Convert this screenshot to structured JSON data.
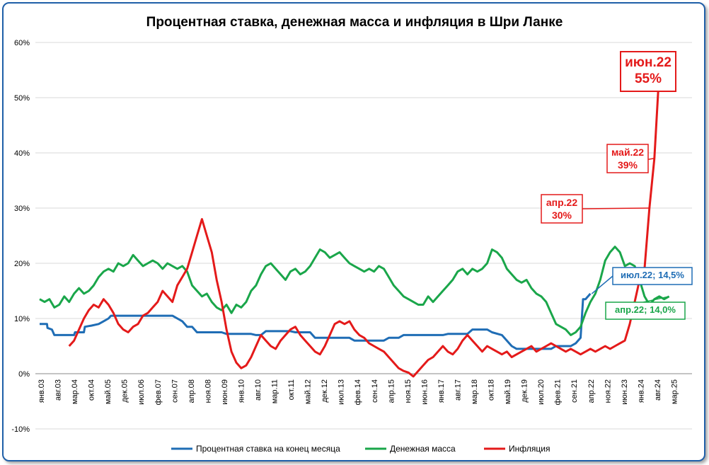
{
  "chart_data": {
    "type": "line",
    "title": "Процентная ставка, денежная масса и инфляция в Шри Ланке",
    "xlabel": "",
    "ylabel": "",
    "ylim": [
      -10,
      60
    ],
    "yticks": [
      "-10%",
      "0%",
      "10%",
      "20%",
      "30%",
      "40%",
      "50%",
      "60%"
    ],
    "grid": "horizontal",
    "legend_position": "bottom",
    "x_tick_labels": [
      "янв.03",
      "авг.03",
      "мар.04",
      "окт.04",
      "май.05",
      "дек.05",
      "июл.06",
      "фев.07",
      "сен.07",
      "апр.08",
      "ноя.08",
      "июн.09",
      "янв.10",
      "авг.10",
      "мар.11",
      "окт.11",
      "май.12",
      "дек.12",
      "июл.13",
      "фев.14",
      "сен.14",
      "апр.15",
      "ноя.15",
      "июн.16",
      "янв.17",
      "авг.17",
      "мар.18",
      "окт.18",
      "май.19",
      "дек.19",
      "июл.20",
      "фев.21",
      "сен.21",
      "апр.22",
      "ноя.22",
      "июн.23",
      "янв.24",
      "авг.24",
      "мар.25"
    ],
    "series": [
      {
        "name": "Процентная ставка на конец месяца",
        "color": "#1f6db5",
        "points": [
          [
            0,
            9
          ],
          [
            1.5,
            9
          ],
          [
            1.6,
            8.3
          ],
          [
            2.5,
            8
          ],
          [
            3,
            7
          ],
          [
            7,
            7
          ],
          [
            7.2,
            7.5
          ],
          [
            9,
            7.5
          ],
          [
            9.2,
            8.5
          ],
          [
            10.5,
            8.7
          ],
          [
            12,
            9
          ],
          [
            13,
            9.5
          ],
          [
            14,
            10
          ],
          [
            14.5,
            10.5
          ],
          [
            27,
            10.5
          ],
          [
            29,
            9.5
          ],
          [
            30,
            8.5
          ],
          [
            31,
            8.5
          ],
          [
            32,
            7.5
          ],
          [
            37,
            7.5
          ],
          [
            38,
            7.2
          ],
          [
            43,
            7.2
          ],
          [
            44,
            7
          ],
          [
            45,
            7
          ],
          [
            46,
            7.7
          ],
          [
            51,
            7.7
          ],
          [
            52,
            7.5
          ],
          [
            55,
            7.5
          ],
          [
            56,
            6.5
          ],
          [
            63,
            6.5
          ],
          [
            64,
            6
          ],
          [
            70,
            6
          ],
          [
            71,
            6.5
          ],
          [
            73,
            6.5
          ],
          [
            74,
            7
          ],
          [
            82,
            7
          ],
          [
            83,
            7.2
          ],
          [
            87,
            7.2
          ],
          [
            88,
            8
          ],
          [
            91,
            8
          ],
          [
            92,
            7.5
          ],
          [
            94,
            7
          ],
          [
            95,
            6
          ],
          [
            96,
            5
          ],
          [
            97,
            4.5
          ],
          [
            104,
            4.5
          ],
          [
            105,
            5
          ],
          [
            108,
            5
          ],
          [
            109,
            5.5
          ],
          [
            110,
            6.5
          ],
          [
            110.5,
            13.5
          ],
          [
            111,
            13.5
          ],
          [
            112,
            14.5
          ]
        ]
      },
      {
        "name": "Денежная масса",
        "color": "#1aa64a",
        "points": [
          [
            0,
            13.5
          ],
          [
            1,
            13
          ],
          [
            2,
            13.5
          ],
          [
            3,
            12
          ],
          [
            4,
            12.5
          ],
          [
            5,
            14
          ],
          [
            6,
            13
          ],
          [
            7,
            14.5
          ],
          [
            8,
            15.5
          ],
          [
            9,
            14.5
          ],
          [
            10,
            15
          ],
          [
            11,
            16
          ],
          [
            12,
            17.5
          ],
          [
            13,
            18.5
          ],
          [
            14,
            19
          ],
          [
            15,
            18.5
          ],
          [
            16,
            20
          ],
          [
            17,
            19.5
          ],
          [
            18,
            20
          ],
          [
            19,
            21.5
          ],
          [
            20,
            20.5
          ],
          [
            21,
            19.5
          ],
          [
            22,
            20
          ],
          [
            23,
            20.5
          ],
          [
            24,
            20
          ],
          [
            25,
            19
          ],
          [
            26,
            20
          ],
          [
            27,
            19.5
          ],
          [
            28,
            19
          ],
          [
            29,
            19.5
          ],
          [
            30,
            18.5
          ],
          [
            31,
            16
          ],
          [
            32,
            15
          ],
          [
            33,
            14
          ],
          [
            34,
            14.5
          ],
          [
            35,
            13
          ],
          [
            36,
            12
          ],
          [
            37,
            11.5
          ],
          [
            38,
            12.5
          ],
          [
            39,
            11
          ],
          [
            40,
            12.5
          ],
          [
            41,
            12
          ],
          [
            42,
            13
          ],
          [
            43,
            15
          ],
          [
            44,
            16
          ],
          [
            45,
            18
          ],
          [
            46,
            19.5
          ],
          [
            47,
            20
          ],
          [
            48,
            19
          ],
          [
            49,
            18
          ],
          [
            50,
            17
          ],
          [
            51,
            18.5
          ],
          [
            52,
            19
          ],
          [
            53,
            18
          ],
          [
            54,
            18.5
          ],
          [
            55,
            19.5
          ],
          [
            56,
            21
          ],
          [
            57,
            22.5
          ],
          [
            58,
            22
          ],
          [
            59,
            21
          ],
          [
            60,
            21.5
          ],
          [
            61,
            22
          ],
          [
            62,
            21
          ],
          [
            63,
            20
          ],
          [
            64,
            19.5
          ],
          [
            65,
            19
          ],
          [
            66,
            18.5
          ],
          [
            67,
            19
          ],
          [
            68,
            18.5
          ],
          [
            69,
            19.5
          ],
          [
            70,
            19
          ],
          [
            71,
            17.5
          ],
          [
            72,
            16
          ],
          [
            73,
            15
          ],
          [
            74,
            14
          ],
          [
            75,
            13.5
          ],
          [
            76,
            13
          ],
          [
            77,
            12.5
          ],
          [
            78,
            12.5
          ],
          [
            79,
            14
          ],
          [
            80,
            13
          ],
          [
            81,
            14
          ],
          [
            82,
            15
          ],
          [
            83,
            16
          ],
          [
            84,
            17
          ],
          [
            85,
            18.5
          ],
          [
            86,
            19
          ],
          [
            87,
            18
          ],
          [
            88,
            19
          ],
          [
            89,
            18.5
          ],
          [
            90,
            19
          ],
          [
            91,
            20
          ],
          [
            92,
            22.5
          ],
          [
            93,
            22
          ],
          [
            94,
            21
          ],
          [
            95,
            19
          ],
          [
            96,
            18
          ],
          [
            97,
            17
          ],
          [
            98,
            16.5
          ],
          [
            99,
            17
          ],
          [
            100,
            15.5
          ],
          [
            101,
            14.5
          ],
          [
            102,
            14
          ],
          [
            103,
            13
          ],
          [
            104,
            11
          ],
          [
            105,
            9
          ],
          [
            106,
            8.5
          ],
          [
            107,
            8
          ],
          [
            108,
            7
          ],
          [
            109,
            7.5
          ],
          [
            110,
            8.5
          ],
          [
            111,
            11
          ],
          [
            112,
            13
          ],
          [
            113,
            14.5
          ],
          [
            114,
            17
          ],
          [
            115,
            20.5
          ],
          [
            116,
            22
          ],
          [
            117,
            23
          ],
          [
            118,
            22
          ],
          [
            119,
            19.5
          ],
          [
            120,
            20
          ],
          [
            121,
            19.5
          ],
          [
            122,
            17
          ],
          [
            123,
            14
          ],
          [
            124,
            12.5
          ],
          [
            125,
            13.5
          ],
          [
            126,
            14
          ],
          [
            127,
            13.5
          ],
          [
            128,
            14
          ]
        ]
      },
      {
        "name": "Инфляция",
        "color": "#e41a1a",
        "points": [
          [
            6,
            5
          ],
          [
            7,
            6
          ],
          [
            8,
            8
          ],
          [
            9,
            10
          ],
          [
            10,
            11.5
          ],
          [
            11,
            12.5
          ],
          [
            12,
            12
          ],
          [
            13,
            13.5
          ],
          [
            14,
            12.5
          ],
          [
            15,
            11
          ],
          [
            16,
            9
          ],
          [
            17,
            8
          ],
          [
            18,
            7.5
          ],
          [
            19,
            8.5
          ],
          [
            20,
            9
          ],
          [
            21,
            10.5
          ],
          [
            22,
            11
          ],
          [
            23,
            12
          ],
          [
            24,
            13
          ],
          [
            25,
            15
          ],
          [
            26,
            14
          ],
          [
            27,
            13
          ],
          [
            28,
            16
          ],
          [
            29,
            17.5
          ],
          [
            30,
            19
          ],
          [
            31,
            22
          ],
          [
            32,
            25
          ],
          [
            33,
            28
          ],
          [
            34,
            25
          ],
          [
            35,
            22
          ],
          [
            36,
            17
          ],
          [
            37,
            13
          ],
          [
            38,
            8
          ],
          [
            39,
            4
          ],
          [
            40,
            2
          ],
          [
            41,
            1
          ],
          [
            42,
            1.5
          ],
          [
            43,
            3
          ],
          [
            44,
            5
          ],
          [
            45,
            7
          ],
          [
            46,
            6
          ],
          [
            47,
            5
          ],
          [
            48,
            4.5
          ],
          [
            49,
            6
          ],
          [
            50,
            7
          ],
          [
            51,
            8
          ],
          [
            52,
            8.5
          ],
          [
            53,
            7
          ],
          [
            54,
            6
          ],
          [
            55,
            5
          ],
          [
            56,
            4
          ],
          [
            57,
            3.5
          ],
          [
            58,
            5
          ],
          [
            59,
            7
          ],
          [
            60,
            9
          ],
          [
            61,
            9.5
          ],
          [
            62,
            9
          ],
          [
            63,
            9.5
          ],
          [
            64,
            8
          ],
          [
            65,
            7
          ],
          [
            66,
            6.5
          ],
          [
            67,
            5.5
          ],
          [
            68,
            5
          ],
          [
            69,
            4.5
          ],
          [
            70,
            4
          ],
          [
            71,
            3
          ],
          [
            72,
            2
          ],
          [
            73,
            1
          ],
          [
            74,
            0.5
          ],
          [
            75,
            0.2
          ],
          [
            76,
            -0.5
          ],
          [
            77,
            0.5
          ],
          [
            78,
            1.5
          ],
          [
            79,
            2.5
          ],
          [
            80,
            3
          ],
          [
            81,
            4
          ],
          [
            82,
            5
          ],
          [
            83,
            4
          ],
          [
            84,
            3.5
          ],
          [
            85,
            4.5
          ],
          [
            86,
            6
          ],
          [
            87,
            7
          ],
          [
            88,
            6
          ],
          [
            89,
            5
          ],
          [
            90,
            4
          ],
          [
            91,
            5
          ],
          [
            92,
            4.5
          ],
          [
            93,
            4
          ],
          [
            94,
            3.5
          ],
          [
            95,
            4
          ],
          [
            96,
            3
          ],
          [
            97,
            3.5
          ],
          [
            98,
            4
          ],
          [
            99,
            4.5
          ],
          [
            100,
            5
          ],
          [
            101,
            4
          ],
          [
            102,
            4.5
          ],
          [
            103,
            5
          ],
          [
            104,
            5.5
          ],
          [
            105,
            5
          ],
          [
            106,
            4.5
          ],
          [
            107,
            4
          ],
          [
            108,
            4.5
          ],
          [
            109,
            4
          ],
          [
            110,
            3.5
          ],
          [
            111,
            4
          ],
          [
            112,
            4.5
          ],
          [
            113,
            4
          ],
          [
            114,
            4.5
          ],
          [
            115,
            5
          ],
          [
            116,
            4.5
          ],
          [
            117,
            5
          ],
          [
            118,
            5.5
          ],
          [
            119,
            6
          ],
          [
            120,
            9
          ],
          [
            121,
            13
          ],
          [
            122,
            17
          ],
          [
            123,
            19
          ],
          [
            124,
            30
          ],
          [
            125,
            39
          ],
          [
            126,
            54.6
          ]
        ]
      }
    ],
    "annotations": [
      {
        "label": "июн.22",
        "value": "55%",
        "color": "#e41a1a"
      },
      {
        "label": "май.22",
        "value": "39%",
        "color": "#e41a1a"
      },
      {
        "label": "апр.22",
        "value": "30%",
        "color": "#e41a1a"
      },
      {
        "label": "июл.22; 14,5%",
        "color": "#1f6db5"
      },
      {
        "label": "апр.22; 14,0%",
        "color": "#1aa64a"
      }
    ]
  }
}
